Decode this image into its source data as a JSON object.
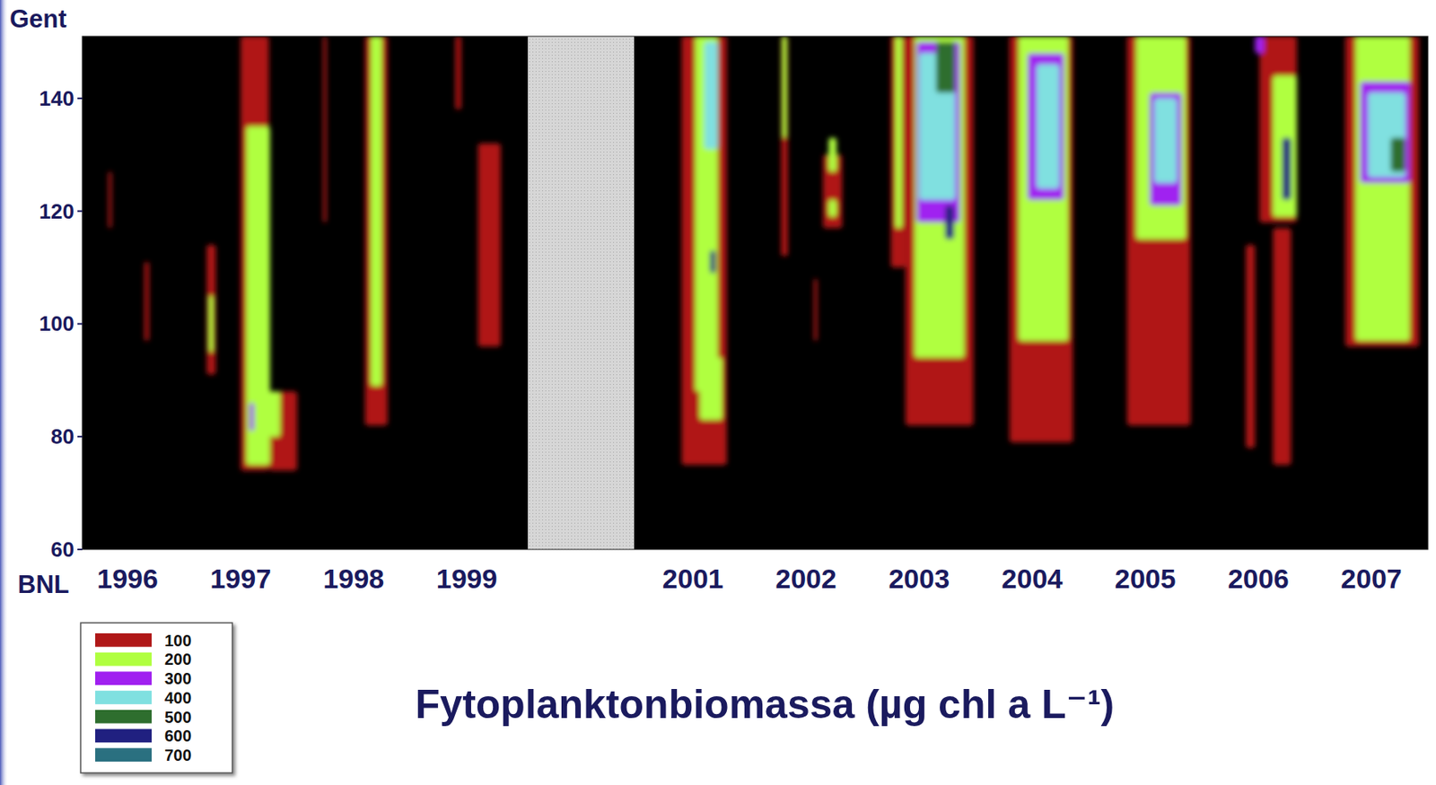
{
  "chart_data": {
    "type": "heatmap",
    "title": "Fytoplanktonbiomassa (µg chl a L⁻¹)",
    "annotations": [
      "Gent",
      "BNL"
    ],
    "xlim": [
      1995.6,
      2007.5
    ],
    "xticks": [
      1996,
      1997,
      1998,
      1999,
      2001,
      2002,
      2003,
      2004,
      2005,
      2006,
      2007
    ],
    "ylim": [
      60,
      151
    ],
    "yticks": [
      60,
      80,
      100,
      120,
      140
    ],
    "no_data": [
      1999.54,
      2000.48
    ],
    "colorbar": {
      "values": [
        100,
        200,
        300,
        400,
        500,
        600,
        700
      ],
      "colors": [
        "#b01818",
        "#b0ff40",
        "#a020f0",
        "#80e0e0",
        "#2e6e2e",
        "#202080",
        "#2a7080"
      ]
    },
    "cells": [
      {
        "x": [
          1995.83,
          1995.86
        ],
        "y": [
          117,
          127
        ],
        "value": 100
      },
      {
        "x": [
          1996.15,
          1996.19
        ],
        "y": [
          97,
          111
        ],
        "value": 100
      },
      {
        "x": [
          1996.7,
          1996.78
        ],
        "y": [
          91,
          114
        ],
        "value": 100
      },
      {
        "x": [
          1996.72,
          1996.76
        ],
        "y": [
          95,
          105
        ],
        "value": 200
      },
      {
        "x": [
          1997.0,
          1997.25
        ],
        "y": [
          74,
          151
        ],
        "value": 100
      },
      {
        "x": [
          1997.25,
          1997.5
        ],
        "y": [
          74,
          88
        ],
        "value": 100
      },
      {
        "x": [
          1997.05,
          1997.26
        ],
        "y": [
          75,
          135
        ],
        "value": 200
      },
      {
        "x": [
          1997.2,
          1997.35
        ],
        "y": [
          80,
          88
        ],
        "value": 200
      },
      {
        "x": [
          1997.08,
          1997.12
        ],
        "y": [
          81,
          86
        ],
        "value": 300
      },
      {
        "x": [
          1997.73,
          1997.76
        ],
        "y": [
          118,
          151
        ],
        "value": 100
      },
      {
        "x": [
          1998.1,
          1998.3
        ],
        "y": [
          82,
          151
        ],
        "value": 100
      },
      {
        "x": [
          1998.15,
          1998.25
        ],
        "y": [
          89,
          151
        ],
        "value": 200
      },
      {
        "x": [
          1998.9,
          1998.95
        ],
        "y": [
          138,
          151
        ],
        "value": 100
      },
      {
        "x": [
          1999.1,
          1999.3
        ],
        "y": [
          96,
          132
        ],
        "value": 100
      },
      {
        "x": [
          2000.9,
          2001.3
        ],
        "y": [
          75,
          151
        ],
        "value": 100
      },
      {
        "x": [
          2001.02,
          2001.22
        ],
        "y": [
          88,
          151
        ],
        "value": 200
      },
      {
        "x": [
          2001.06,
          2001.26
        ],
        "y": [
          83,
          94
        ],
        "value": 200
      },
      {
        "x": [
          2001.1,
          2001.22
        ],
        "y": [
          131,
          150
        ],
        "value": 400
      },
      {
        "x": [
          2001.15,
          2001.2
        ],
        "y": [
          109,
          113
        ],
        "value": 600
      },
      {
        "x": [
          2001.78,
          2001.84
        ],
        "y": [
          112,
          151
        ],
        "value": 100
      },
      {
        "x": [
          2001.79,
          2001.83
        ],
        "y": [
          133,
          151
        ],
        "value": 200
      },
      {
        "x": [
          2002.07,
          2002.1
        ],
        "y": [
          97,
          108
        ],
        "value": 100
      },
      {
        "x": [
          2002.15,
          2002.32
        ],
        "y": [
          117,
          130
        ],
        "value": 100
      },
      {
        "x": [
          2002.2,
          2002.27
        ],
        "y": [
          127,
          133
        ],
        "value": 200
      },
      {
        "x": [
          2002.2,
          2002.27
        ],
        "y": [
          119,
          122
        ],
        "value": 200
      },
      {
        "x": [
          2002.75,
          2002.88
        ],
        "y": [
          110,
          151
        ],
        "value": 100
      },
      {
        "x": [
          2002.79,
          2002.85
        ],
        "y": [
          117,
          151
        ],
        "value": 200
      },
      {
        "x": [
          2002.88,
          2003.48
        ],
        "y": [
          82,
          151
        ],
        "value": 100
      },
      {
        "x": [
          2002.96,
          2003.4
        ],
        "y": [
          94,
          151
        ],
        "value": 200
      },
      {
        "x": [
          2002.98,
          2003.36
        ],
        "y": [
          118,
          150
        ],
        "value": 300
      },
      {
        "x": [
          2003.0,
          2003.32
        ],
        "y": [
          122,
          148
        ],
        "value": 400
      },
      {
        "x": [
          2003.15,
          2003.32
        ],
        "y": [
          141,
          150
        ],
        "value": 500
      },
      {
        "x": [
          2003.23,
          2003.31
        ],
        "y": [
          115,
          121
        ],
        "value": 600
      },
      {
        "x": [
          2003.8,
          2004.36
        ],
        "y": [
          79,
          151
        ],
        "value": 100
      },
      {
        "x": [
          2003.88,
          2004.32
        ],
        "y": [
          97,
          151
        ],
        "value": 200
      },
      {
        "x": [
          2003.96,
          2004.28
        ],
        "y": [
          122,
          148
        ],
        "value": 300
      },
      {
        "x": [
          2004.04,
          2004.24
        ],
        "y": [
          124,
          146
        ],
        "value": 400
      },
      {
        "x": [
          2004.84,
          2005.4
        ],
        "y": [
          82,
          151
        ],
        "value": 100
      },
      {
        "x": [
          2004.92,
          2005.36
        ],
        "y": [
          115,
          151
        ],
        "value": 200
      },
      {
        "x": [
          2005.04,
          2005.32
        ],
        "y": [
          121,
          141
        ],
        "value": 300
      },
      {
        "x": [
          2005.08,
          2005.28
        ],
        "y": [
          125,
          140
        ],
        "value": 400
      },
      {
        "x": [
          2005.89,
          2005.97
        ],
        "y": [
          78,
          114
        ],
        "value": 100
      },
      {
        "x": [
          2006.13,
          2006.29
        ],
        "y": [
          75,
          117
        ],
        "value": 100
      },
      {
        "x": [
          2006.01,
          2006.34
        ],
        "y": [
          118,
          151
        ],
        "value": 100
      },
      {
        "x": [
          2006.13,
          2006.34
        ],
        "y": [
          119,
          144
        ],
        "value": 200
      },
      {
        "x": [
          2006.21,
          2006.29
        ],
        "y": [
          122,
          133
        ],
        "value": 600
      },
      {
        "x": [
          2005.97,
          2006.05
        ],
        "y": [
          148,
          151
        ],
        "value": 300
      },
      {
        "x": [
          2006.77,
          2007.42
        ],
        "y": [
          96,
          151
        ],
        "value": 100
      },
      {
        "x": [
          2006.86,
          2007.34
        ],
        "y": [
          97,
          151
        ],
        "value": 200
      },
      {
        "x": [
          2006.9,
          2007.34
        ],
        "y": [
          125,
          143
        ],
        "value": 300
      },
      {
        "x": [
          2006.97,
          2007.3
        ],
        "y": [
          126,
          141
        ],
        "value": 400
      },
      {
        "x": [
          2007.17,
          2007.3
        ],
        "y": [
          127,
          133
        ],
        "value": 500
      }
    ]
  }
}
